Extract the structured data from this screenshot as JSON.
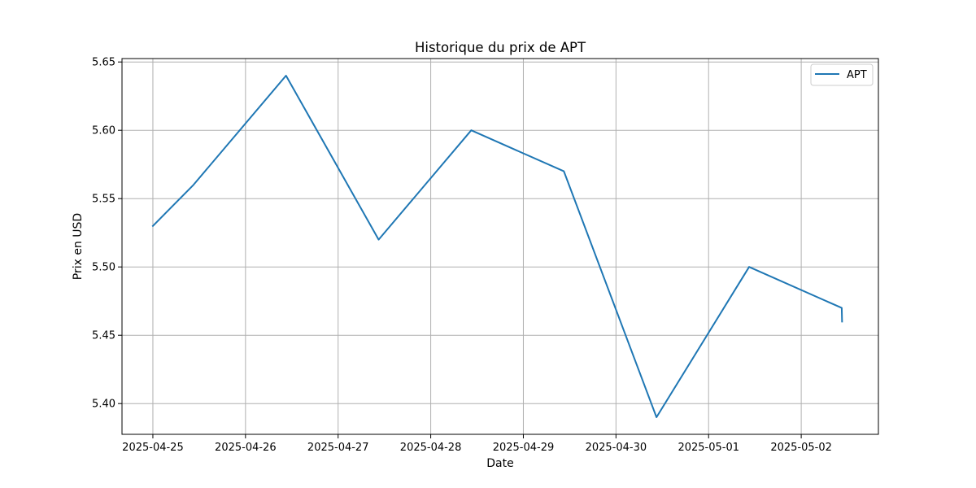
{
  "chart_data": {
    "type": "line",
    "title": "Historique du prix de APT",
    "xlabel": "Date",
    "ylabel": "Prix en USD",
    "x_ticks": [
      "2025-04-25",
      "2025-04-26",
      "2025-04-27",
      "2025-04-28",
      "2025-04-29",
      "2025-04-30",
      "2025-05-01",
      "2025-05-02"
    ],
    "y_ticks": [
      "5.40",
      "5.45",
      "5.50",
      "5.55",
      "5.60",
      "5.65"
    ],
    "xlim": [
      "2024-04-24 16:00",
      "2025-05-02 20:00"
    ],
    "ylim": [
      5.3775,
      5.6525
    ],
    "grid": true,
    "legend_position": "top-right",
    "series": [
      {
        "name": "APT",
        "color": "#1f77b4",
        "points": [
          {
            "x": "2025-04-25 00:00",
            "y": 5.53
          },
          {
            "x": "2025-04-25 10:30",
            "y": 5.56
          },
          {
            "x": "2025-04-26 10:30",
            "y": 5.64
          },
          {
            "x": "2025-04-27 10:30",
            "y": 5.52
          },
          {
            "x": "2025-04-28 10:30",
            "y": 5.6
          },
          {
            "x": "2025-04-29 10:30",
            "y": 5.57
          },
          {
            "x": "2025-04-30 10:30",
            "y": 5.39
          },
          {
            "x": "2025-05-01 10:30",
            "y": 5.5
          },
          {
            "x": "2025-05-02 10:30",
            "y": 5.47
          },
          {
            "x": "2025-05-02 10:35",
            "y": 5.46
          }
        ]
      }
    ]
  }
}
